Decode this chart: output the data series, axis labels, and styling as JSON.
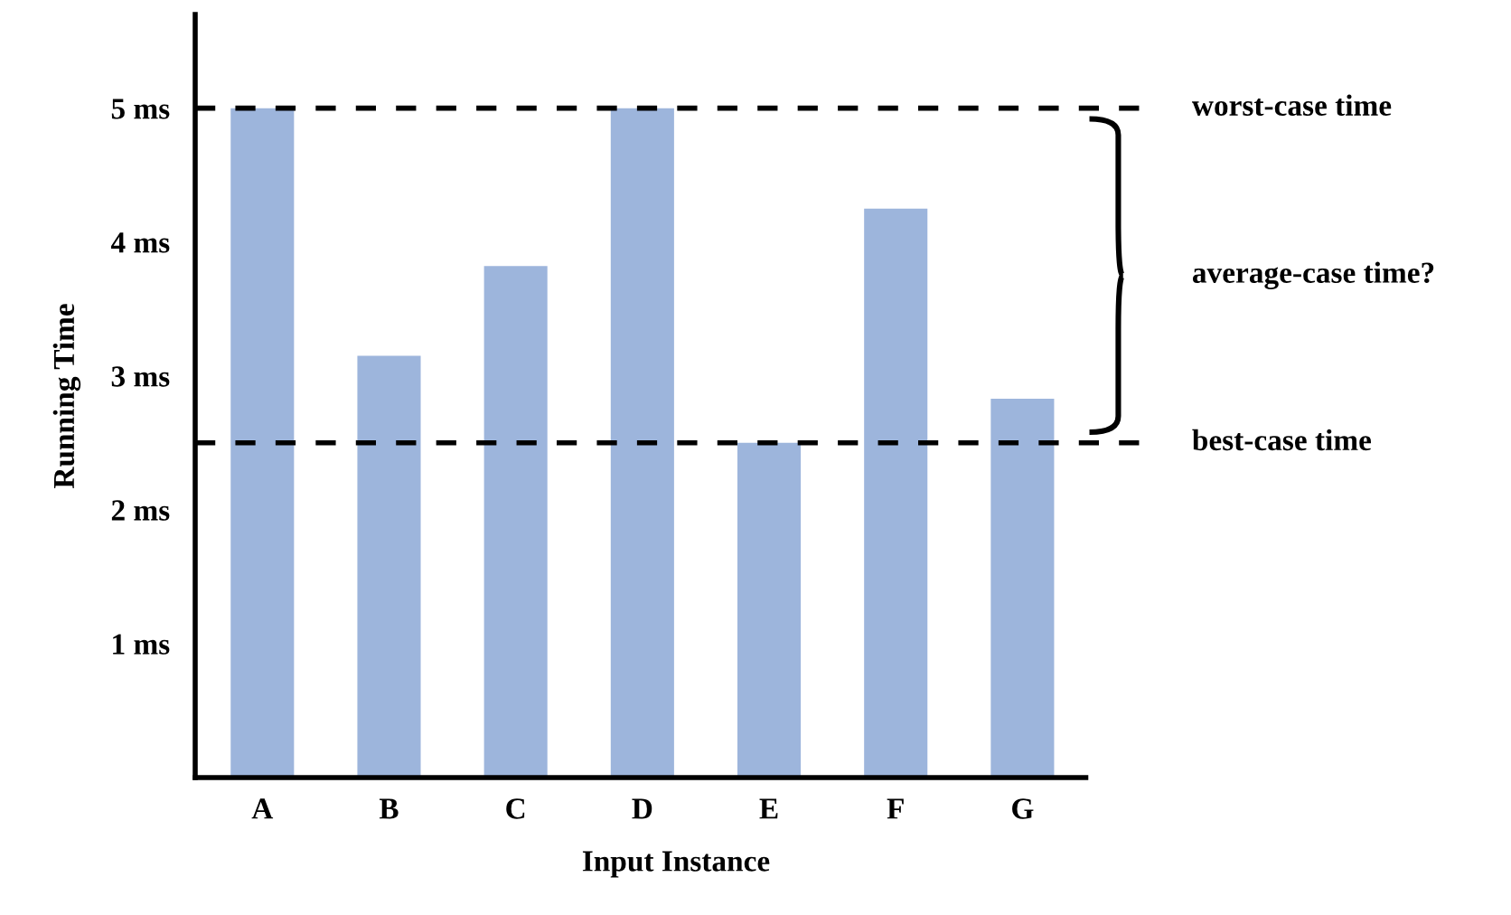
{
  "chart_data": {
    "type": "bar",
    "xlabel": "Input Instance",
    "ylabel": "Running Time",
    "categories": [
      "A",
      "B",
      "C",
      "D",
      "E",
      "F",
      "G"
    ],
    "values": [
      5,
      3.15,
      3.82,
      5,
      2.5,
      4.25,
      2.83
    ],
    "color": "#9db5dc",
    "ylim": [
      0,
      5.7
    ],
    "yticks": [
      {
        "value": 1,
        "label": "1 ms"
      },
      {
        "value": 2,
        "label": "2 ms"
      },
      {
        "value": 3,
        "label": "3 ms"
      },
      {
        "value": 4,
        "label": "4 ms"
      },
      {
        "value": 5,
        "label": "5 ms"
      }
    ],
    "ref_lines": [
      {
        "axis": "y",
        "value": 5,
        "label": "worst-case time",
        "color": "#000000",
        "line_style": "dashed"
      },
      {
        "axis": "y",
        "value": 2.5,
        "label": "best-case time",
        "color": "#000000",
        "line_style": "dashed"
      }
    ],
    "annotations": [
      "average-case time?"
    ],
    "grid": false,
    "legend": false
  }
}
